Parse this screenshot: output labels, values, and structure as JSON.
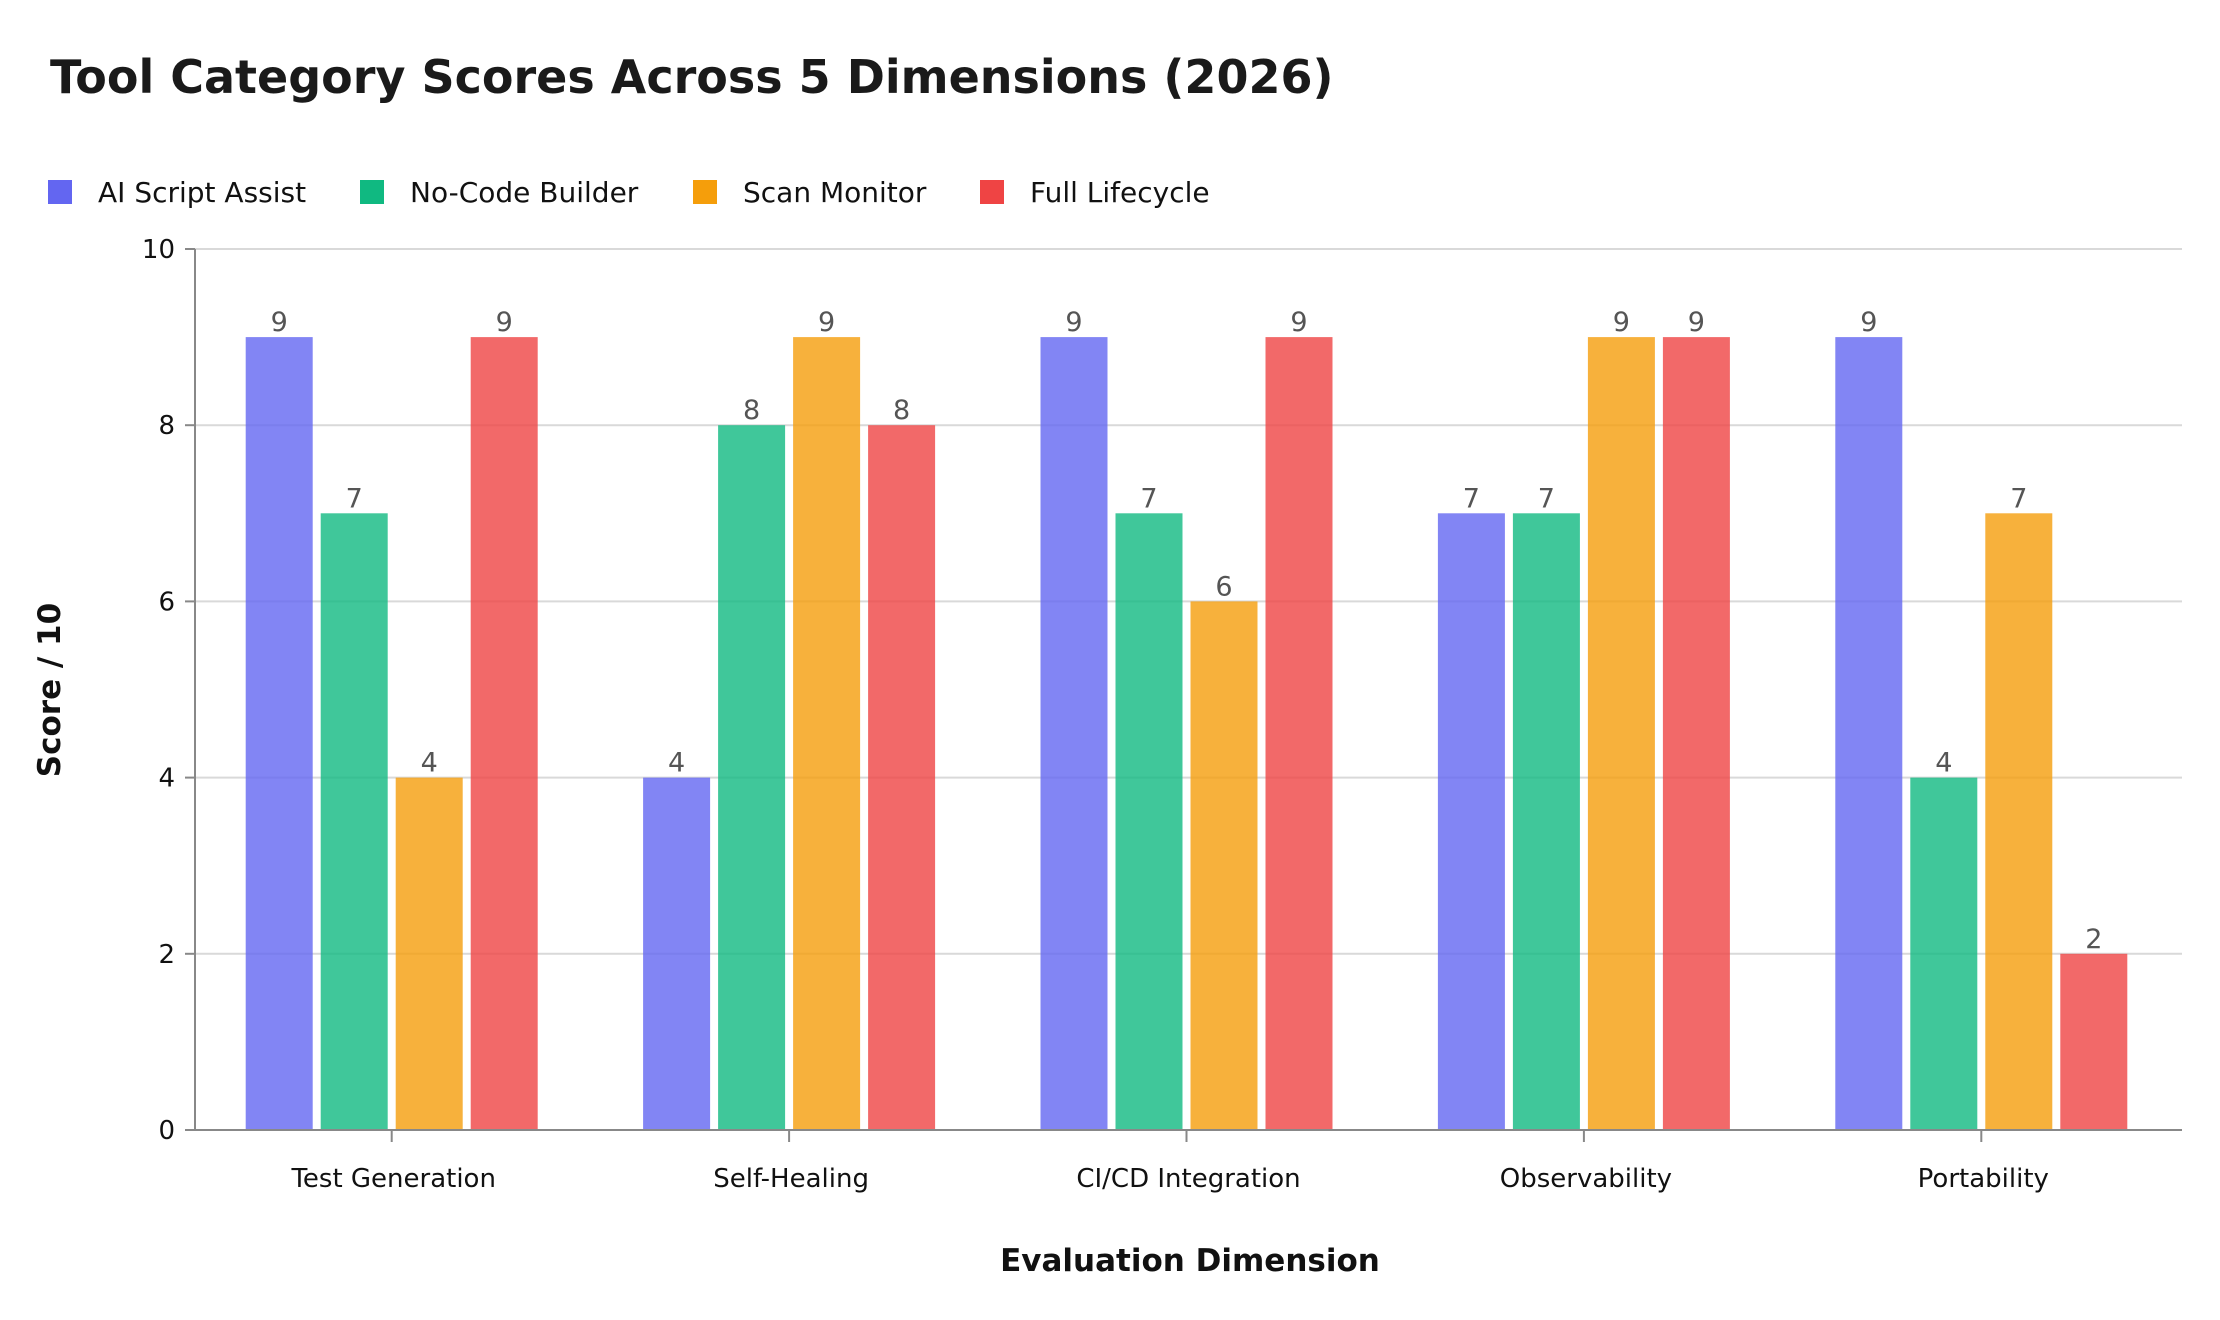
{
  "chart_data": {
    "type": "bar",
    "title": "Tool Category Scores Across 5 Dimensions (2026)",
    "xlabel": "Evaluation Dimension",
    "ylabel": "Score / 10",
    "ylim": [
      0,
      10
    ],
    "yticks": [
      "0",
      "2",
      "4",
      "6",
      "8",
      "10"
    ],
    "grid": true,
    "legend_position": "top-left",
    "categories": [
      "Test Generation",
      "Self-Healing",
      "CI/CD Integration",
      "Observability",
      "Portability"
    ],
    "series": [
      {
        "name": "AI Script Assist",
        "color": "#6366f1",
        "values": [
          9,
          4,
          9,
          7,
          9
        ]
      },
      {
        "name": "No-Code Builder",
        "color": "#10b981",
        "values": [
          7,
          8,
          7,
          7,
          4
        ]
      },
      {
        "name": "Scan Monitor",
        "color": "#f59e0b",
        "values": [
          4,
          9,
          6,
          9,
          7
        ]
      },
      {
        "name": "Full Lifecycle",
        "color": "#ef4444",
        "values": [
          9,
          8,
          9,
          9,
          2
        ]
      }
    ]
  }
}
